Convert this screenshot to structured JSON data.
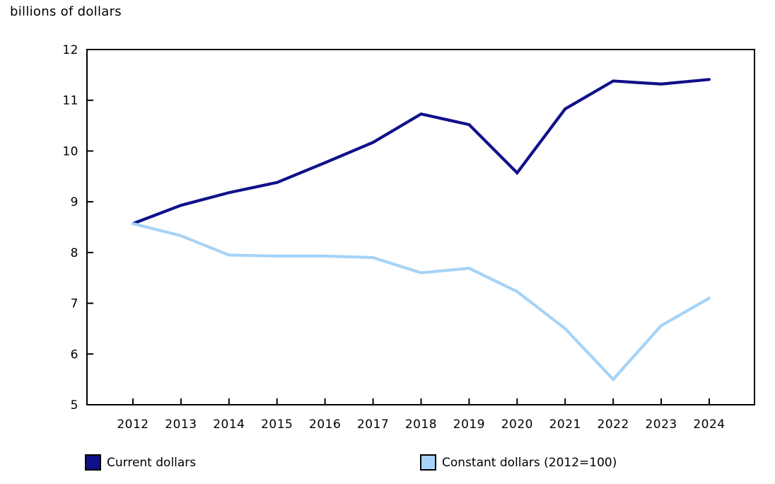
{
  "chart_data": {
    "type": "line",
    "title": "billions of dollars",
    "xlabel": "",
    "ylabel": "billions of dollars",
    "categories": [
      "2012",
      "2013",
      "2014",
      "2015",
      "2016",
      "2017",
      "2018",
      "2019",
      "2020",
      "2021",
      "2022",
      "2023",
      "2024"
    ],
    "series": [
      {
        "name": "Current dollars",
        "color": "#10108a",
        "values": [
          8.57,
          8.93,
          9.18,
          9.38,
          9.77,
          10.17,
          10.73,
          10.52,
          9.57,
          10.83,
          11.38,
          11.32,
          11.41
        ]
      },
      {
        "name": "Constant dollars (2012=100)",
        "color": "#a6d3f7",
        "values": [
          8.57,
          8.33,
          7.95,
          7.93,
          7.93,
          7.9,
          7.6,
          7.69,
          7.23,
          6.5,
          5.5,
          6.56,
          7.1
        ]
      }
    ],
    "ylim": [
      5,
      12
    ],
    "yticks": [
      5,
      6,
      7,
      8,
      9,
      10,
      11,
      12
    ],
    "grid": false,
    "legend_position": "bottom",
    "axis_color": "#000000",
    "background_color": "#ffffff"
  }
}
